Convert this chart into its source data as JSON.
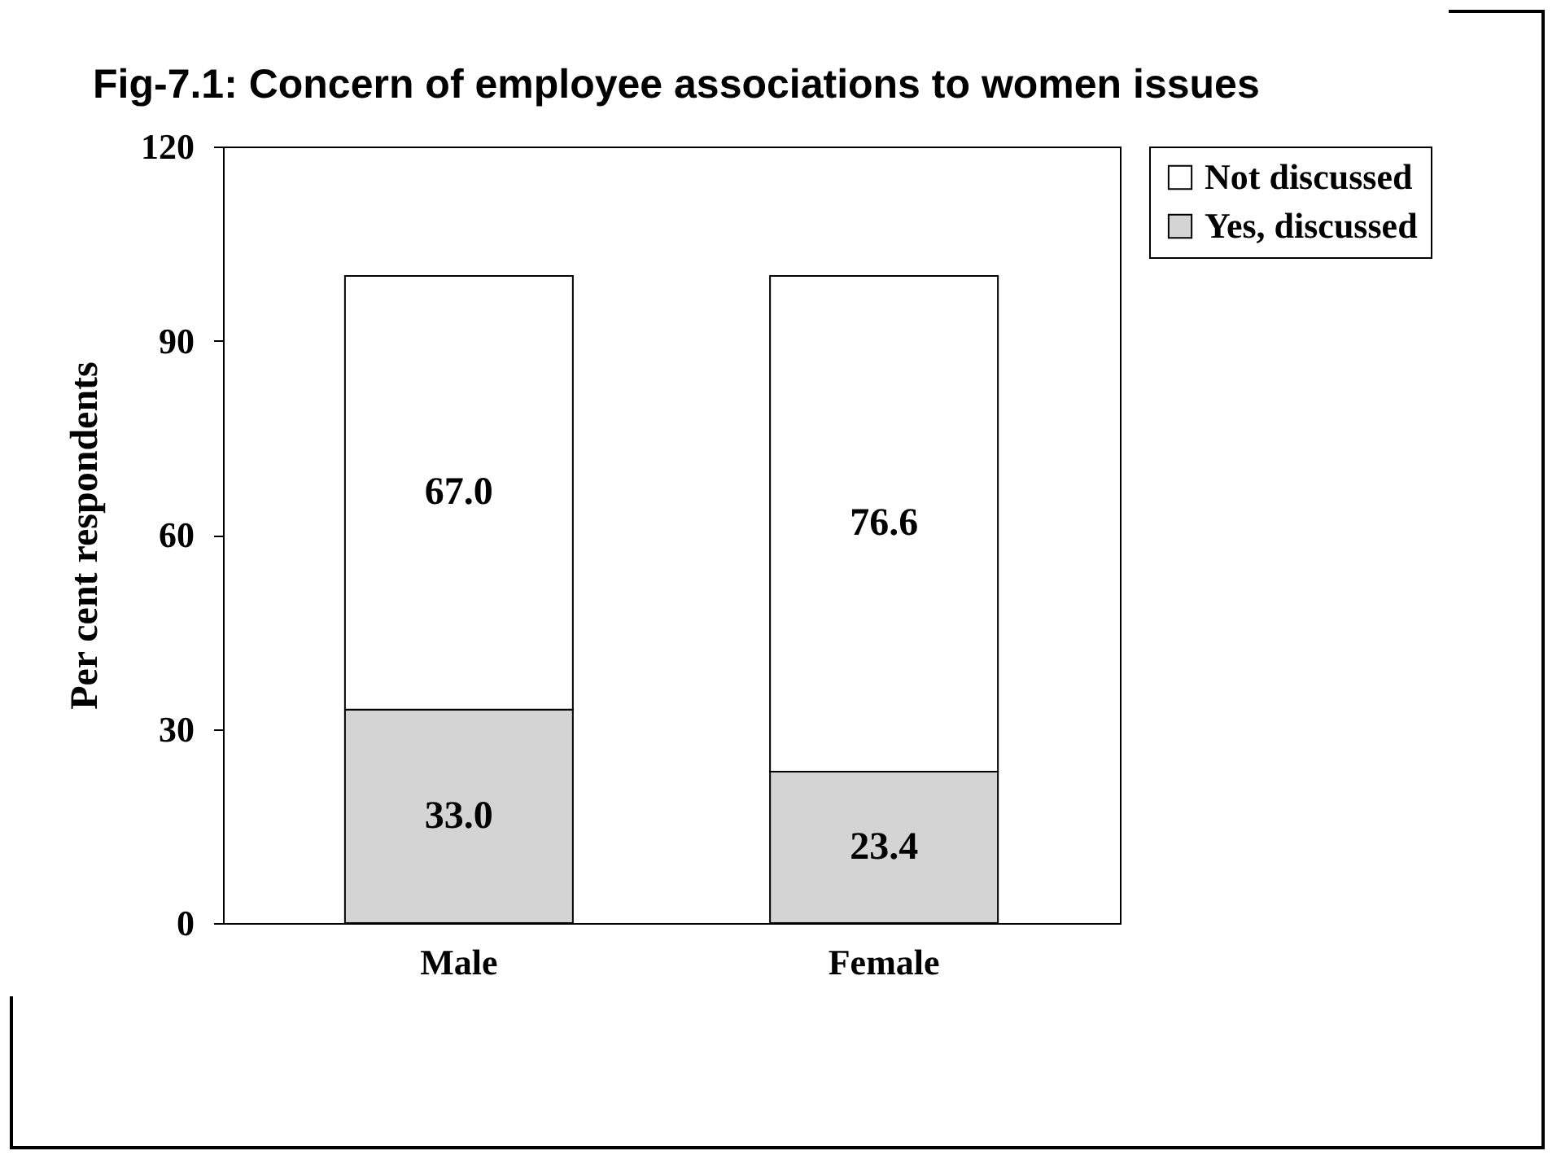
{
  "chart_data": {
    "type": "bar",
    "title": "Fig-7.1: Concern of employee associations to women issues",
    "ylabel": "Per cent respondents",
    "categories": [
      "Male",
      "Female"
    ],
    "stacked": true,
    "ylim": [
      0,
      120
    ],
    "yticks": [
      0,
      30,
      60,
      90,
      120
    ],
    "grid": false,
    "legend": "right",
    "series": [
      {
        "name": "Yes, discussed",
        "color": "#d4d4d4",
        "values": [
          33.0,
          23.4
        ],
        "value_labels": [
          "33.0",
          "23.4"
        ]
      },
      {
        "name": "Not discussed",
        "color": "#ffffff",
        "values": [
          67.0,
          76.6
        ],
        "value_labels": [
          "67.0",
          "76.6"
        ]
      }
    ]
  }
}
